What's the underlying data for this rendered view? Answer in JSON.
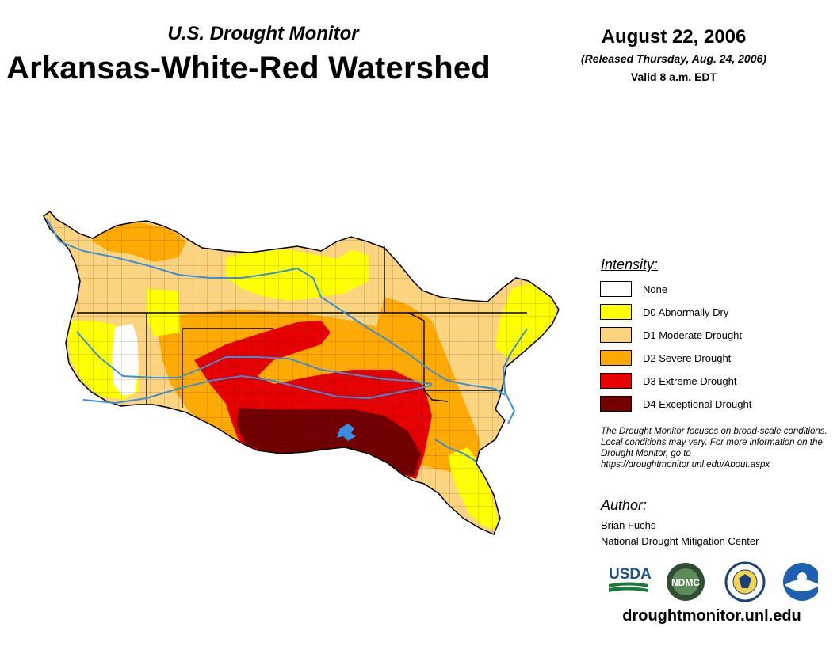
{
  "header": {
    "subtitle": "U.S. Drought Monitor",
    "title": "Arkansas-White-Red Watershed",
    "date": "August 22, 2006",
    "released": "(Released Thursday, Aug. 24, 2006)",
    "valid": "Valid 8 a.m. EDT"
  },
  "legend": {
    "heading": "Intensity:",
    "items": [
      {
        "label": "None",
        "color": "#ffffff"
      },
      {
        "label": "D0 Abnormally Dry",
        "color": "#ffff00"
      },
      {
        "label": "D1 Moderate Drought",
        "color": "#fcd37f"
      },
      {
        "label": "D2 Severe Drought",
        "color": "#ffaa00"
      },
      {
        "label": "D3 Extreme Drought",
        "color": "#e60000"
      },
      {
        "label": "D4 Exceptional Drought",
        "color": "#730000"
      }
    ]
  },
  "note": "The Drought Monitor focuses on broad-scale conditions. Local conditions may vary. For more information on the Drought Monitor, go to https://droughtmonitor.unl.edu/About.aspx",
  "author": {
    "heading": "Author:",
    "name": "Brian Fuchs",
    "org": "National Drought Mitigation Center"
  },
  "logos": {
    "usda": "USDA",
    "ndmc": "NDMC",
    "noaa": "NOAA"
  },
  "footer": {
    "url": "droughtmonitor.unl.edu"
  },
  "colors": {
    "river": "#3a8ee0",
    "county_line": "#000000"
  }
}
